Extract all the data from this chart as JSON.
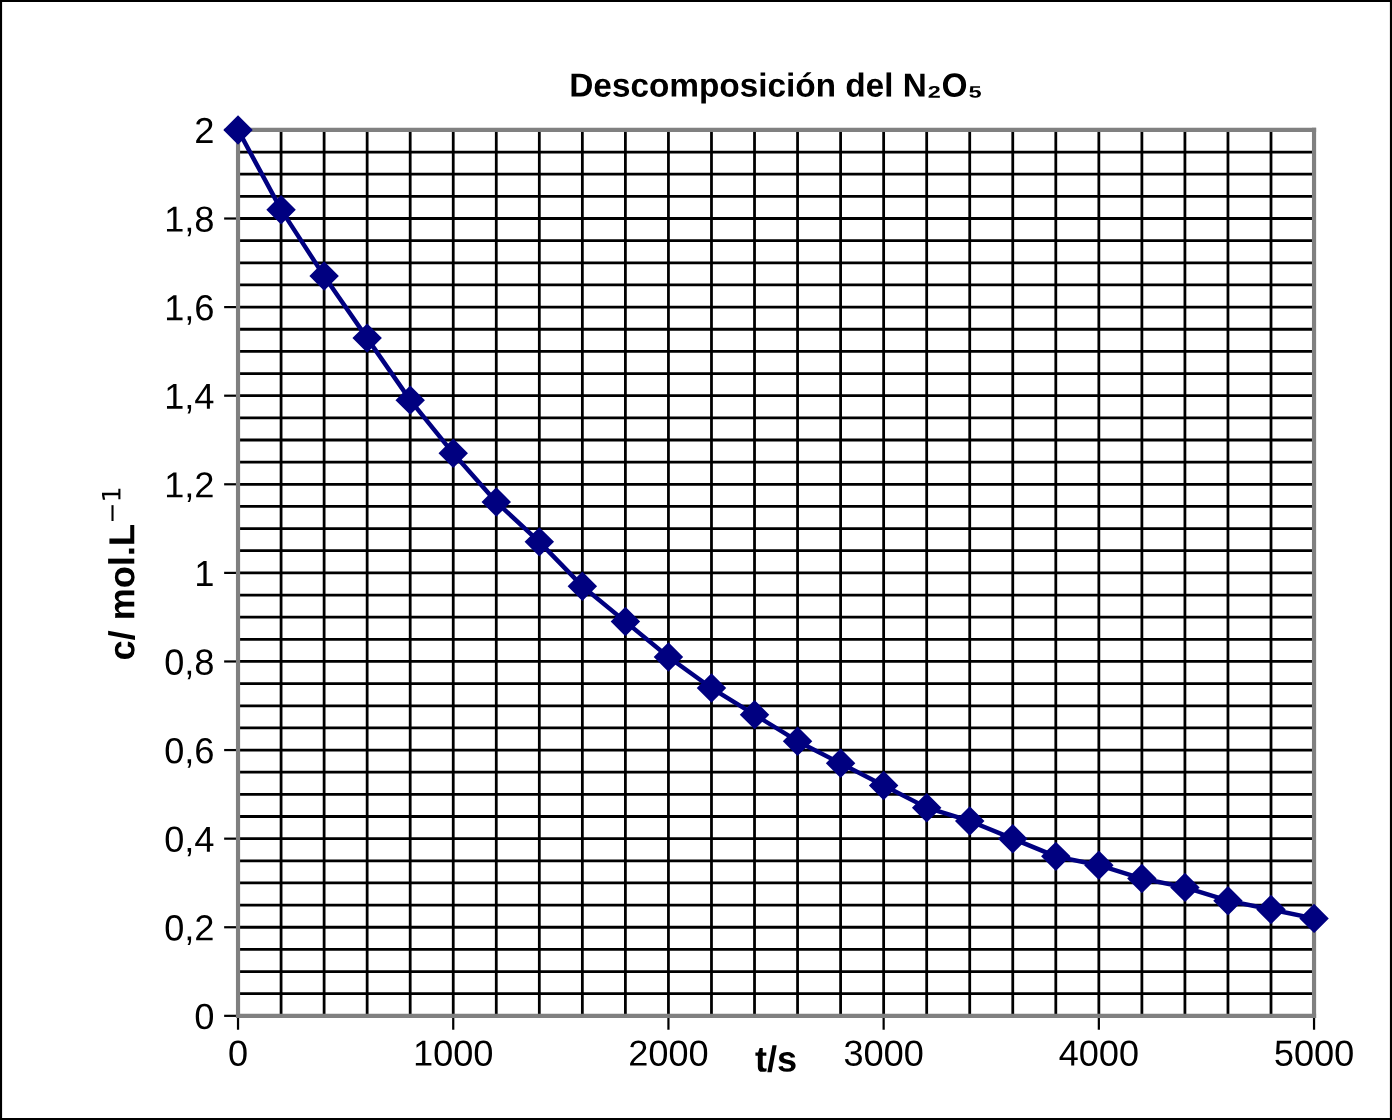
{
  "chart_data": {
    "type": "line",
    "title": "Descomposición del N₂O₅",
    "xlabel": "t/s",
    "ylabel": "c/ mol.L$^{−1}$",
    "x": [
      0,
      200,
      400,
      600,
      800,
      1000,
      1200,
      1400,
      1600,
      1800,
      2000,
      2200,
      2400,
      2600,
      2800,
      3000,
      3200,
      3400,
      3600,
      3800,
      4000,
      4200,
      4400,
      4600,
      4800,
      5000
    ],
    "series": [
      {
        "color": "#000080",
        "values": [
          2.0,
          1.82,
          1.67,
          1.53,
          1.39,
          1.27,
          1.16,
          1.07,
          0.97,
          0.89,
          0.81,
          0.74,
          0.68,
          0.62,
          0.57,
          0.52,
          0.47,
          0.44,
          0.4,
          0.36,
          0.34,
          0.31,
          0.29,
          0.26,
          0.24,
          0.22
        ]
      }
    ],
    "xlim": [
      0,
      5000
    ],
    "ylim": [
      0,
      2
    ],
    "xticks": [
      0,
      {
        "value": 200,
        "label": null
      },
      {
        "value": 400,
        "label": null
      },
      {
        "value": 600,
        "label": null
      },
      {
        "value": 800,
        "label": null
      },
      1000,
      {
        "value": 1200,
        "label": null
      },
      {
        "value": 1400,
        "label": null
      },
      {
        "value": 1600,
        "label": null
      },
      {
        "value": 1800,
        "label": null
      },
      2000,
      {
        "value": 2200,
        "label": null
      },
      {
        "value": 2400,
        "label": null
      },
      {
        "value": 2600,
        "label": null
      },
      {
        "value": 2800,
        "label": null
      },
      3000,
      {
        "value": 3200,
        "label": null
      },
      {
        "value": 3400,
        "label": null
      },
      {
        "value": 3600,
        "label": null
      },
      {
        "value": 3800,
        "label": null
      },
      4000,
      {
        "value": 4200,
        "label": null
      },
      {
        "value": 4400,
        "label": null
      },
      {
        "value": 4600,
        "label": null
      },
      {
        "value": 4800,
        "label": null
      },
      5000
    ],
    "yticks": [
      0,
      {
        "value": 0.05,
        "label": null
      },
      {
        "value": 0.1,
        "label": null
      },
      {
        "value": 0.15,
        "label": null
      },
      {
        "value": 0.2,
        "label": "0,2"
      },
      {
        "value": 0.25,
        "label": null
      },
      {
        "value": 0.3,
        "label": null
      },
      {
        "value": 0.35,
        "label": null
      },
      {
        "value": 0.4,
        "label": "0,4"
      },
      {
        "value": 0.45,
        "label": null
      },
      {
        "value": 0.5,
        "label": null
      },
      {
        "value": 0.55,
        "label": null
      },
      {
        "value": 0.6,
        "label": "0,6"
      },
      {
        "value": 0.65,
        "label": null
      },
      {
        "value": 0.7,
        "label": null
      },
      {
        "value": 0.75,
        "label": null
      },
      {
        "value": 0.8,
        "label": "0,8"
      },
      {
        "value": 0.85,
        "label": null
      },
      {
        "value": 0.9,
        "label": null
      },
      {
        "value": 0.95,
        "label": null
      },
      1,
      {
        "value": 1.05,
        "label": null
      },
      {
        "value": 1.1,
        "label": null
      },
      {
        "value": 1.15,
        "label": null
      },
      {
        "value": 1.2,
        "label": "1,2"
      },
      {
        "value": 1.25,
        "label": null
      },
      {
        "value": 1.3,
        "label": null
      },
      {
        "value": 1.35,
        "label": null
      },
      {
        "value": 1.4,
        "label": "1,4"
      },
      {
        "value": 1.45,
        "label": null
      },
      {
        "value": 1.5,
        "label": null
      },
      {
        "value": 1.55,
        "label": null
      },
      {
        "value": 1.6,
        "label": "1,6"
      },
      {
        "value": 1.65,
        "label": null
      },
      {
        "value": 1.7,
        "label": null
      },
      {
        "value": 1.75,
        "label": null
      },
      {
        "value": 1.8,
        "label": "1,8"
      },
      {
        "value": 1.85,
        "label": null
      },
      {
        "value": 1.9,
        "label": null
      },
      {
        "value": 1.95,
        "label": null
      },
      2
    ],
    "grid": true,
    "marker": "diamond",
    "line_style": "solid"
  }
}
